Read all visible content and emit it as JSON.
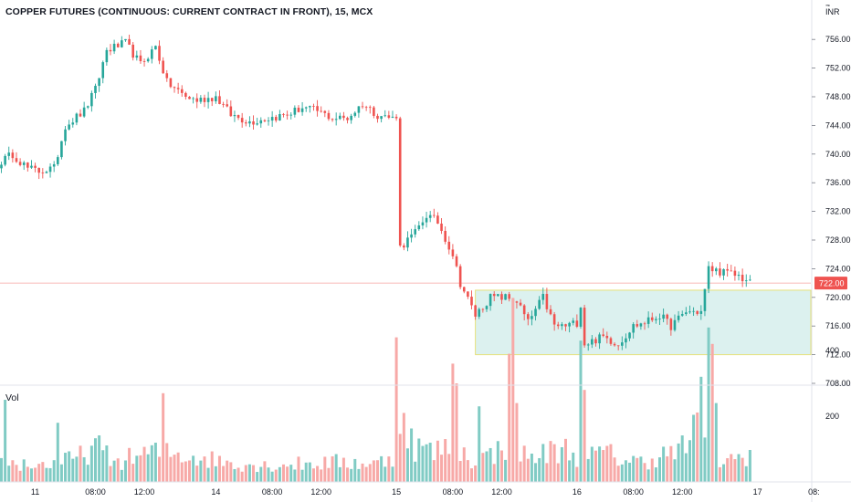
{
  "header": {
    "title": "COPPER FUTURES (CONTINUOUS: CURRENT CONTRACT IN FRONT), 15, MCX",
    "currency": "INR",
    "volume_label": "Vol"
  },
  "colors": {
    "up": "#26a69a",
    "down": "#ef5350",
    "vol_up": "#80cbc4",
    "vol_down": "#f7a9a7",
    "price_line": "#ef5350",
    "zone_fill": "#b2dfdb",
    "zone_border": "#e6e07a",
    "axis_text": "#131722",
    "grid": "#e0e3eb"
  },
  "chart_data": {
    "type": "candlestick",
    "last_price": "722.00",
    "last_price_value": 722,
    "price_axis": {
      "min": 708,
      "max": 760,
      "ticks": [
        708,
        712,
        716,
        720,
        724,
        728,
        732,
        736,
        740,
        744,
        748,
        752,
        756
      ],
      "tick_labels": [
        "708.00",
        "712.00",
        "716.00",
        "720.00",
        "724.00",
        "728.00",
        "732.00",
        "736.00",
        "740.00",
        "744.00",
        "748.00",
        "752.00",
        "756.00"
      ],
      "top_label": "7"
    },
    "volume_axis": {
      "min": 0,
      "max": 600,
      "ticks": [
        200,
        400
      ],
      "tick_labels": [
        "200",
        "400"
      ]
    },
    "time_axis": {
      "bar_count": 200,
      "labels": [
        {
          "label": "11",
          "bar": 9
        },
        {
          "label": "08:00",
          "bar": 25
        },
        {
          "label": "12:00",
          "bar": 38
        },
        {
          "label": "14",
          "bar": 57
        },
        {
          "label": "08:00",
          "bar": 72
        },
        {
          "label": "12:00",
          "bar": 85
        },
        {
          "label": "15",
          "bar": 105
        },
        {
          "label": "08:00",
          "bar": 120
        },
        {
          "label": "12:00",
          "bar": 133
        },
        {
          "label": "16",
          "bar": 153
        },
        {
          "label": "08:00",
          "bar": 168
        },
        {
          "label": "12:00",
          "bar": 181
        },
        {
          "label": "17",
          "bar": 201
        },
        {
          "label": "08:",
          "bar": 216
        }
      ]
    },
    "zone": {
      "bar_start": 126,
      "bar_end": 218,
      "low": 712,
      "high": 721
    },
    "path": [
      [
        0,
        739
      ],
      [
        3,
        740
      ],
      [
        7,
        738
      ],
      [
        10,
        737.6
      ],
      [
        14,
        738
      ],
      [
        17,
        744
      ],
      [
        22,
        746
      ],
      [
        25,
        749
      ],
      [
        28,
        754.5
      ],
      [
        33,
        755.5
      ],
      [
        37,
        752.5
      ],
      [
        41,
        755
      ],
      [
        44,
        750
      ],
      [
        49,
        748
      ],
      [
        52,
        747.5
      ],
      [
        57,
        748
      ],
      [
        61,
        745.5
      ],
      [
        66,
        744.5
      ],
      [
        71,
        745
      ],
      [
        76,
        745.5
      ],
      [
        80,
        746.5
      ],
      [
        84,
        746
      ],
      [
        88,
        745
      ],
      [
        92,
        745
      ],
      [
        96,
        747
      ],
      [
        100,
        745.5
      ],
      [
        104,
        745
      ],
      [
        105,
        745.5
      ],
      [
        106,
        727
      ],
      [
        110,
        729
      ],
      [
        113,
        731.5
      ],
      [
        116,
        730.5
      ],
      [
        120,
        726
      ],
      [
        122,
        722
      ],
      [
        126,
        717.5
      ],
      [
        130,
        720
      ],
      [
        134,
        720
      ],
      [
        137,
        719.5
      ],
      [
        140,
        716.5
      ],
      [
        144,
        720
      ],
      [
        147,
        716
      ],
      [
        150,
        716
      ],
      [
        153,
        716.5
      ],
      [
        154,
        719
      ],
      [
        155,
        713.5
      ],
      [
        160,
        714.5
      ],
      [
        164,
        713.5
      ],
      [
        168,
        716
      ],
      [
        171,
        716.5
      ],
      [
        175,
        717.5
      ],
      [
        178,
        716
      ],
      [
        182,
        718
      ],
      [
        186,
        718
      ],
      [
        188,
        724
      ],
      [
        192,
        723.5
      ],
      [
        196,
        723
      ],
      [
        199,
        722
      ]
    ],
    "volume_path": [
      [
        0,
        60
      ],
      [
        10,
        50
      ],
      [
        20,
        70
      ],
      [
        25,
        110
      ],
      [
        30,
        60
      ],
      [
        40,
        90
      ],
      [
        50,
        80
      ],
      [
        60,
        60
      ],
      [
        70,
        50
      ],
      [
        80,
        55
      ],
      [
        90,
        60
      ],
      [
        100,
        55
      ],
      [
        104,
        80
      ],
      [
        105,
        190
      ],
      [
        110,
        110
      ],
      [
        115,
        90
      ],
      [
        120,
        110
      ],
      [
        125,
        70
      ],
      [
        130,
        80
      ],
      [
        135,
        120
      ],
      [
        140,
        70
      ],
      [
        145,
        90
      ],
      [
        150,
        100
      ],
      [
        155,
        70
      ],
      [
        160,
        90
      ],
      [
        165,
        70
      ],
      [
        170,
        60
      ],
      [
        175,
        80
      ],
      [
        180,
        90
      ],
      [
        185,
        160
      ],
      [
        190,
        60
      ],
      [
        195,
        70
      ],
      [
        199,
        90
      ]
    ],
    "volume_spikes": [
      {
        "bar": 1,
        "v": 250
      },
      {
        "bar": 15,
        "v": 180
      },
      {
        "bar": 43,
        "v": 270
      },
      {
        "bar": 105,
        "v": 440
      },
      {
        "bar": 107,
        "v": 210
      },
      {
        "bar": 120,
        "v": 360
      },
      {
        "bar": 121,
        "v": 300
      },
      {
        "bar": 127,
        "v": 230
      },
      {
        "bar": 135,
        "v": 390
      },
      {
        "bar": 136,
        "v": 560
      },
      {
        "bar": 137,
        "v": 240
      },
      {
        "bar": 154,
        "v": 430
      },
      {
        "bar": 155,
        "v": 280
      },
      {
        "bar": 186,
        "v": 320
      },
      {
        "bar": 188,
        "v": 470
      },
      {
        "bar": 189,
        "v": 420
      },
      {
        "bar": 190,
        "v": 240
      }
    ]
  }
}
